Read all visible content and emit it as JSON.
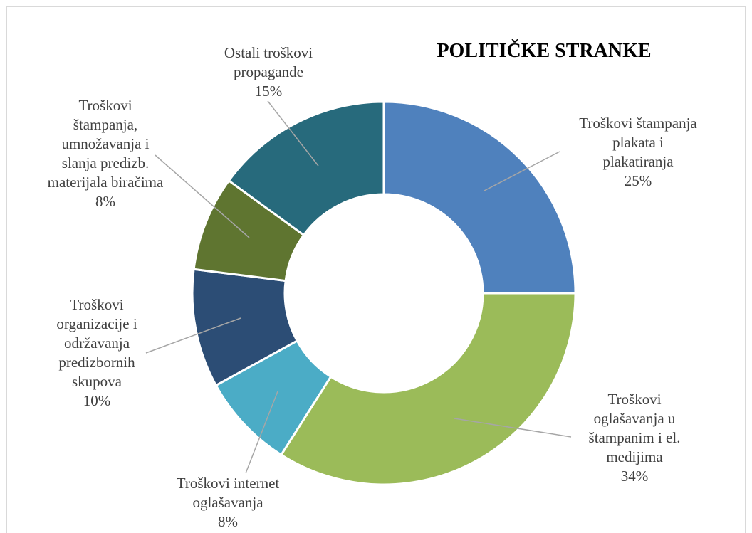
{
  "chart_data": {
    "type": "pie",
    "variant": "doughnut",
    "title": "POLITIČKE STRANKE",
    "slices": [
      {
        "label": [
          "Troškovi štampanja",
          "plakata i",
          "plakatiranja"
        ],
        "percent_label": "25%",
        "value": 25,
        "color": "#4f81bd"
      },
      {
        "label": [
          "Troškovi",
          "oglašavanja u",
          "štampanim i el.",
          "medijima"
        ],
        "percent_label": "34%",
        "value": 34,
        "color": "#9bbb59"
      },
      {
        "label": [
          "Troškovi internet",
          "oglašavanja"
        ],
        "percent_label": "8%",
        "value": 8,
        "color": "#4bacc6"
      },
      {
        "label": [
          "Troškovi",
          "organizacije i",
          "održavanja",
          "predizbornih",
          "skupova"
        ],
        "percent_label": "10%",
        "value": 10,
        "color": "#2c4d75"
      },
      {
        "label": [
          "Troškovi",
          "štampanja,",
          "umnožavanja i",
          "slanja predizb.",
          "materijala biračima"
        ],
        "percent_label": "8%",
        "value": 8,
        "color": "#5f7530"
      },
      {
        "label": [
          "Ostali troškovi",
          "propagande"
        ],
        "percent_label": "15%",
        "value": 15,
        "color": "#276a7c"
      }
    ],
    "start_angle_deg": 0,
    "direction": "clockwise",
    "legend": "none",
    "data_labels": "outside with leader lines"
  }
}
